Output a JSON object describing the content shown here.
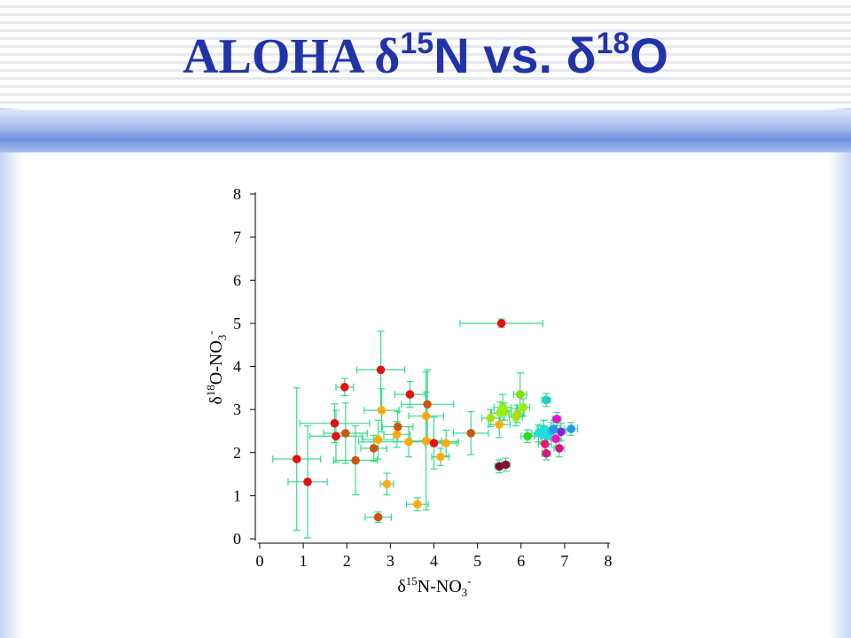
{
  "slide": {
    "title_part1": "ALOHA δ",
    "title_sup1": "15",
    "title_part2": "N vs. δ",
    "title_sup2": "18",
    "title_part3": "O",
    "colors": {
      "title": "#2233aa",
      "errorbar": "#33dd88"
    }
  },
  "chart_data": {
    "type": "scatter",
    "xlabel": "δ15N-NO3-",
    "ylabel": "δ18O-NO3-",
    "xlim": [
      0,
      8
    ],
    "ylim": [
      0,
      8
    ],
    "xticks": [
      "0",
      "1",
      "2",
      "3",
      "4",
      "5",
      "6",
      "7",
      "8"
    ],
    "yticks": [
      "0",
      "1",
      "2",
      "3",
      "4",
      "5",
      "6",
      "7",
      "8"
    ],
    "grid": false,
    "points": [
      {
        "x": 0.85,
        "y": 1.85,
        "xerr": 0.55,
        "yerr": 1.65,
        "color": "#e81010"
      },
      {
        "x": 1.1,
        "y": 1.32,
        "xerr": 0.45,
        "yerr": 1.3,
        "color": "#e81010"
      },
      {
        "x": 1.72,
        "y": 2.68,
        "xerr": 0.8,
        "yerr": 0.45,
        "color": "#e81010"
      },
      {
        "x": 1.75,
        "y": 2.38,
        "xerr": 0.6,
        "yerr": 0.6,
        "color": "#e81010"
      },
      {
        "x": 1.95,
        "y": 3.52,
        "xerr": 0.2,
        "yerr": 0.2,
        "color": "#e81010"
      },
      {
        "x": 1.97,
        "y": 2.45,
        "xerr": 0.5,
        "yerr": 0.7,
        "color": "#cc5511"
      },
      {
        "x": 2.2,
        "y": 1.82,
        "xerr": 0.5,
        "yerr": 0.8,
        "color": "#cc5511"
      },
      {
        "x": 2.62,
        "y": 2.1,
        "xerr": 0.3,
        "yerr": 0.3,
        "color": "#cc5511"
      },
      {
        "x": 2.72,
        "y": 2.3,
        "xerr": 0.35,
        "yerr": 0.45,
        "color": "#ffaa11"
      },
      {
        "x": 2.72,
        "y": 0.5,
        "xerr": 0.3,
        "yerr": 0.12,
        "color": "#cc5511"
      },
      {
        "x": 2.78,
        "y": 3.92,
        "xerr": 0.55,
        "yerr": 0.9,
        "color": "#e81010"
      },
      {
        "x": 2.8,
        "y": 2.98,
        "xerr": 0.4,
        "yerr": 0.5,
        "color": "#ffaa11"
      },
      {
        "x": 2.92,
        "y": 1.27,
        "xerr": 0.15,
        "yerr": 0.25,
        "color": "#ffaa11"
      },
      {
        "x": 3.15,
        "y": 2.42,
        "xerr": 0.3,
        "yerr": 0.3,
        "color": "#ffaa11"
      },
      {
        "x": 3.17,
        "y": 2.6,
        "xerr": 0.35,
        "yerr": 0.35,
        "color": "#cc5511"
      },
      {
        "x": 3.42,
        "y": 2.25,
        "xerr": 1.15,
        "yerr": 0.35,
        "color": "#ffaa11"
      },
      {
        "x": 3.45,
        "y": 3.35,
        "xerr": 0.35,
        "yerr": 0.3,
        "color": "#e81010"
      },
      {
        "x": 3.62,
        "y": 0.8,
        "xerr": 0.25,
        "yerr": 0.15,
        "color": "#ffaa11"
      },
      {
        "x": 3.82,
        "y": 2.85,
        "xerr": 0.4,
        "yerr": 0.55,
        "color": "#ffaa11"
      },
      {
        "x": 3.82,
        "y": 2.27,
        "xerr": 0.35,
        "yerr": 1.6,
        "color": "#ffaa11"
      },
      {
        "x": 3.85,
        "y": 3.12,
        "xerr": 0.6,
        "yerr": 0.8,
        "color": "#cc5511"
      },
      {
        "x": 4.0,
        "y": 2.22,
        "xerr": 0.2,
        "yerr": 0.6,
        "color": "#e81010"
      },
      {
        "x": 4.15,
        "y": 1.9,
        "xerr": 0.2,
        "yerr": 0.2,
        "color": "#ffaa11"
      },
      {
        "x": 4.28,
        "y": 2.22,
        "xerr": 0.25,
        "yerr": 0.3,
        "color": "#ffaa11"
      },
      {
        "x": 4.85,
        "y": 2.45,
        "xerr": 0.4,
        "yerr": 0.5,
        "color": "#cc5511"
      },
      {
        "x": 5.55,
        "y": 5.0,
        "xerr": 0.95,
        "yerr": 0.1,
        "color": "#e81010"
      },
      {
        "x": 5.3,
        "y": 2.8,
        "xerr": 0.2,
        "yerr": 0.2,
        "color": "#aadd11"
      },
      {
        "x": 5.5,
        "y": 2.65,
        "xerr": 0.25,
        "yerr": 0.3,
        "color": "#ffaa11"
      },
      {
        "x": 5.52,
        "y": 2.92,
        "xerr": 0.2,
        "yerr": 0.25,
        "color": "#99ee11"
      },
      {
        "x": 5.58,
        "y": 3.05,
        "xerr": 0.2,
        "yerr": 0.3,
        "color": "#99ee11"
      },
      {
        "x": 5.62,
        "y": 2.95,
        "xerr": 0.15,
        "yerr": 0.2,
        "color": "#99ee11"
      },
      {
        "x": 5.88,
        "y": 2.82,
        "xerr": 0.15,
        "yerr": 0.2,
        "color": "#99ee11"
      },
      {
        "x": 5.92,
        "y": 2.9,
        "xerr": 0.15,
        "yerr": 0.2,
        "color": "#aadd11"
      },
      {
        "x": 5.98,
        "y": 3.35,
        "xerr": 0.15,
        "yerr": 0.5,
        "color": "#88dd00"
      },
      {
        "x": 6.05,
        "y": 3.05,
        "xerr": 0.15,
        "yerr": 0.2,
        "color": "#99ee11"
      },
      {
        "x": 5.5,
        "y": 1.68,
        "xerr": 0.1,
        "yerr": 0.15,
        "color": "#771133"
      },
      {
        "x": 5.65,
        "y": 1.72,
        "xerr": 0.1,
        "yerr": 0.15,
        "color": "#881133"
      },
      {
        "x": 6.15,
        "y": 2.38,
        "xerr": 0.15,
        "yerr": 0.15,
        "color": "#22dd22"
      },
      {
        "x": 6.4,
        "y": 2.45,
        "xerr": 0.15,
        "yerr": 0.2,
        "color": "#22dddd"
      },
      {
        "x": 6.48,
        "y": 2.42,
        "xerr": 0.15,
        "yerr": 0.2,
        "color": "#22dddd"
      },
      {
        "x": 6.52,
        "y": 2.55,
        "xerr": 0.15,
        "yerr": 0.2,
        "color": "#22dddd"
      },
      {
        "x": 6.58,
        "y": 3.22,
        "xerr": 0.1,
        "yerr": 0.15,
        "color": "#22cccc"
      },
      {
        "x": 6.6,
        "y": 2.38,
        "xerr": 0.15,
        "yerr": 0.2,
        "color": "#22dddd"
      },
      {
        "x": 6.7,
        "y": 2.5,
        "xerr": 0.15,
        "yerr": 0.2,
        "color": "#22bbee"
      },
      {
        "x": 6.55,
        "y": 2.2,
        "xerr": 0.15,
        "yerr": 0.25,
        "color": "#ee1177"
      },
      {
        "x": 6.58,
        "y": 1.98,
        "xerr": 0.1,
        "yerr": 0.15,
        "color": "#dd1188"
      },
      {
        "x": 6.8,
        "y": 2.32,
        "xerr": 0.12,
        "yerr": 0.2,
        "color": "#ee11cc"
      },
      {
        "x": 6.82,
        "y": 2.78,
        "xerr": 0.1,
        "yerr": 0.15,
        "color": "#ee11cc"
      },
      {
        "x": 6.88,
        "y": 2.1,
        "xerr": 0.12,
        "yerr": 0.2,
        "color": "#dd1188"
      },
      {
        "x": 6.92,
        "y": 2.48,
        "xerr": 0.12,
        "yerr": 0.2,
        "color": "#8822dd"
      },
      {
        "x": 6.75,
        "y": 2.55,
        "xerr": 0.15,
        "yerr": 0.2,
        "color": "#2299ee"
      },
      {
        "x": 7.15,
        "y": 2.55,
        "xerr": 0.15,
        "yerr": 0.15,
        "color": "#2299ee"
      }
    ]
  }
}
